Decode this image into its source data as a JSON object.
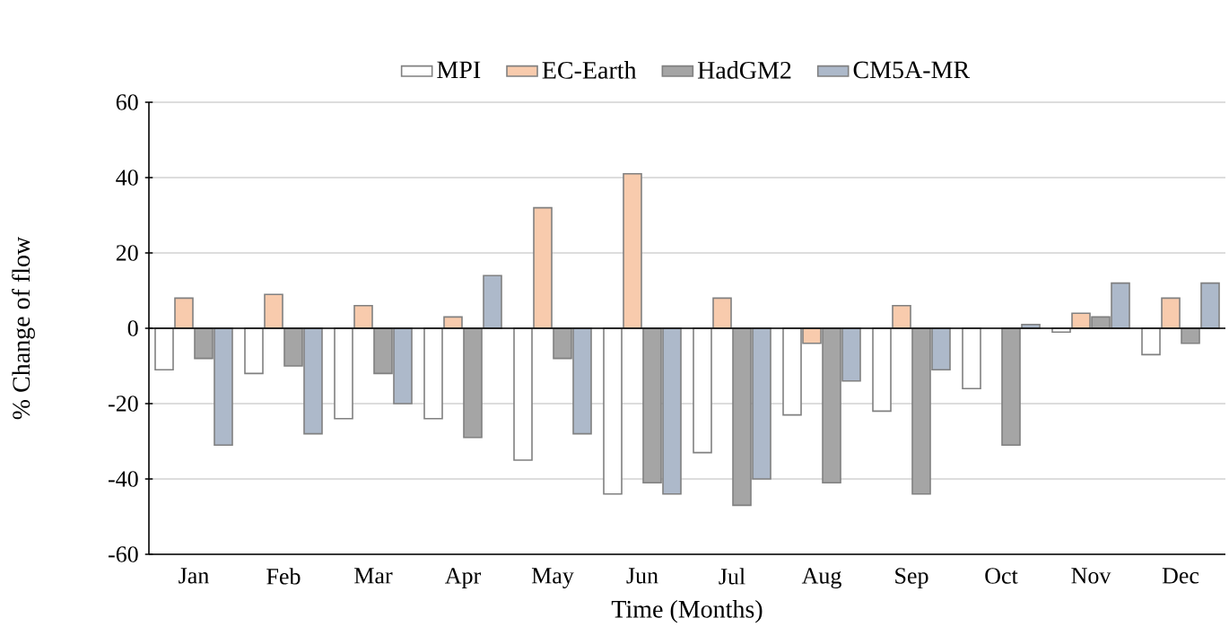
{
  "chart_data": {
    "type": "bar",
    "xlabel": "Time (Months)",
    "ylabel": "% Change of flow",
    "categories": [
      "Jan",
      "Feb",
      "Mar",
      "Apr",
      "May",
      "Jun",
      "Jul",
      "Aug",
      "Sep",
      "Oct",
      "Nov",
      "Dec"
    ],
    "series": [
      {
        "name": "MPI",
        "color": "#ffffff",
        "values": [
          -11,
          -12,
          -24,
          -24,
          -35,
          -44,
          -33,
          -23,
          -22,
          -16,
          -1,
          -7
        ]
      },
      {
        "name": "EC-Earth",
        "color": "#f8cbad",
        "values": [
          8,
          9,
          6,
          3,
          32,
          41,
          8,
          -4,
          6,
          null,
          4,
          8
        ]
      },
      {
        "name": "HadGM2",
        "color": "#a5a5a5",
        "values": [
          -8,
          -10,
          -12,
          -29,
          -8,
          -41,
          -47,
          -41,
          -44,
          -31,
          3,
          -4
        ]
      },
      {
        "name": "CM5A-MR",
        "color": "#adb9ca",
        "values": [
          -31,
          -28,
          -20,
          14,
          -28,
          -44,
          -40,
          -14,
          -11,
          1,
          12,
          12
        ]
      }
    ],
    "ylim": [
      -60,
      60
    ],
    "yticks": [
      -60,
      -40,
      -20,
      0,
      20,
      40,
      60
    ],
    "grid": "y",
    "legend": "top"
  }
}
